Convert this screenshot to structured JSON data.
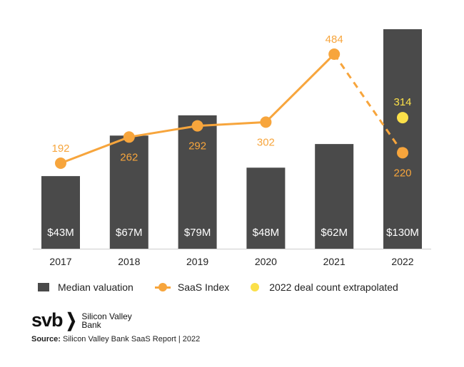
{
  "chart_data": {
    "type": "bar",
    "categories": [
      "2017",
      "2018",
      "2019",
      "2020",
      "2021",
      "2022"
    ],
    "series": [
      {
        "name": "Median valuation",
        "type": "bar",
        "values": [
          43,
          67,
          79,
          48,
          62,
          130
        ],
        "labels": [
          "$43M",
          "$67M",
          "$79M",
          "$48M",
          "$62M",
          "$130M"
        ],
        "color": "#4a4a4a",
        "unit": "$M"
      },
      {
        "name": "SaaS Index",
        "type": "line",
        "values": [
          192,
          262,
          292,
          302,
          484,
          220
        ],
        "labels": [
          "192",
          "262",
          "292",
          "302",
          "484",
          "220"
        ],
        "color": "#f7a53c",
        "dashed_last_segment": true
      },
      {
        "name": "2022 deal count extrapolated",
        "type": "scatter",
        "category": "2022",
        "value": 314,
        "label": "314",
        "color": "#fbe049"
      }
    ],
    "ylim": [
      0,
      130
    ],
    "grid": false,
    "legend_placement": "bottom"
  },
  "legend": {
    "median_valuation": "Median valuation",
    "saas_index": "SaaS Index",
    "deal_count": "2022 deal count extrapolated"
  },
  "logo": {
    "mark": "svb",
    "line1": "Silicon Valley",
    "line2": "Bank"
  },
  "source": {
    "label": "Source:",
    "text": " Silicon Valley Bank SaaS Report | 2022"
  }
}
